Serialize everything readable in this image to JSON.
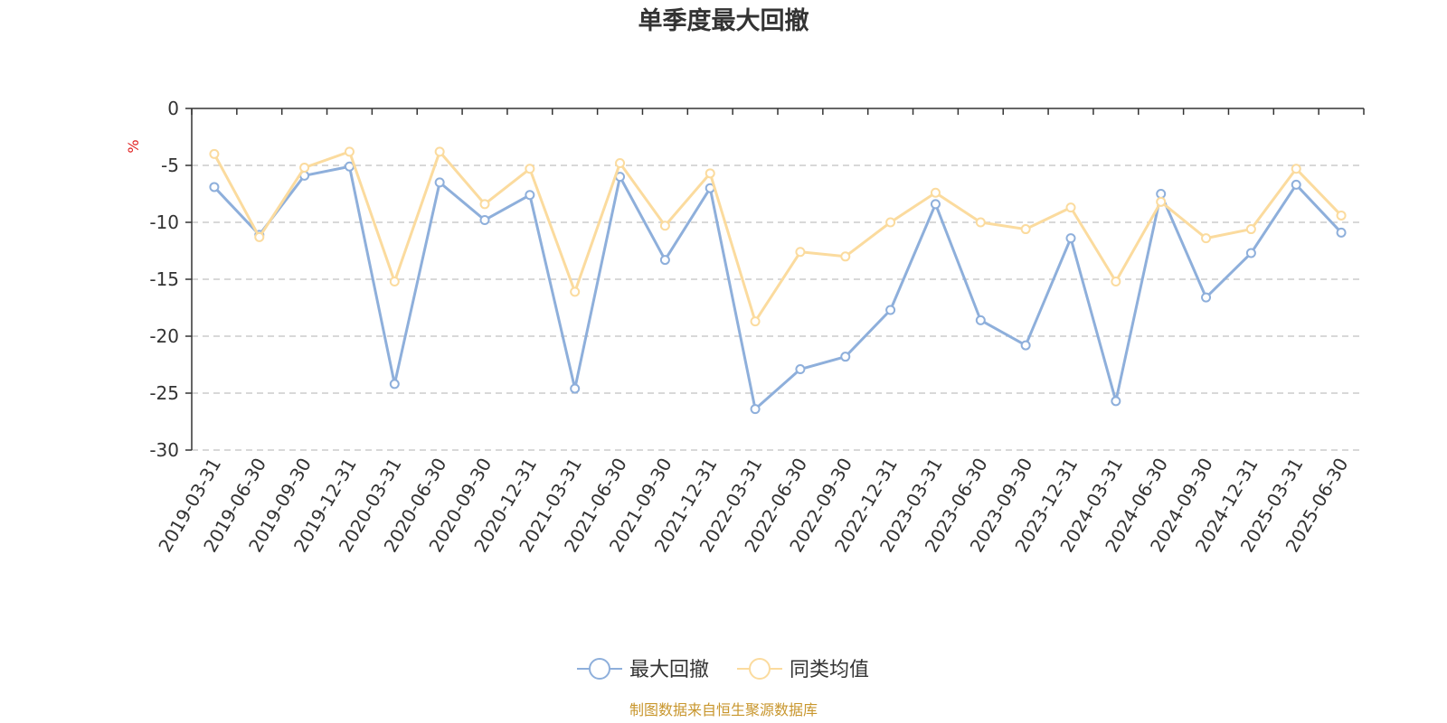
{
  "chart_data": {
    "type": "line",
    "title": "单季度最大回撤",
    "ylabel": "%",
    "xlabel": "",
    "ylim": [
      -30,
      0
    ],
    "yticks": [
      0,
      -5,
      -10,
      -15,
      -20,
      -25,
      -30
    ],
    "grid": true,
    "legend_position": "bottom",
    "categories": [
      "2019-03-31",
      "2019-06-30",
      "2019-09-30",
      "2019-12-31",
      "2020-03-31",
      "2020-06-30",
      "2020-09-30",
      "2020-12-31",
      "2021-03-31",
      "2021-06-30",
      "2021-09-30",
      "2021-12-31",
      "2022-03-31",
      "2022-06-30",
      "2022-09-30",
      "2022-12-31",
      "2023-03-31",
      "2023-06-30",
      "2023-09-30",
      "2023-12-31",
      "2024-03-31",
      "2024-06-30",
      "2024-09-30",
      "2024-12-31",
      "2025-03-31",
      "2025-06-30"
    ],
    "series": [
      {
        "name": "最大回撤",
        "color": "#8eafdb",
        "values": [
          -6.9,
          -11.1,
          -5.9,
          -5.1,
          -24.2,
          -6.5,
          -9.8,
          -7.6,
          -24.6,
          -6.0,
          -13.3,
          -7.0,
          -26.4,
          -22.9,
          -21.8,
          -17.7,
          -8.4,
          -18.6,
          -20.8,
          -11.4,
          -25.7,
          -7.5,
          -16.6,
          -12.7,
          -6.7,
          -10.9
        ]
      },
      {
        "name": "同类均值",
        "color": "#fbdb9e",
        "values": [
          -4.0,
          -11.3,
          -5.2,
          -3.8,
          -15.2,
          -3.8,
          -8.4,
          -5.3,
          -16.1,
          -4.8,
          -10.3,
          -5.7,
          -18.7,
          -12.6,
          -13.0,
          -10.0,
          -7.4,
          -10.0,
          -10.6,
          -8.7,
          -15.2,
          -8.2,
          -11.4,
          -10.6,
          -5.3,
          -9.4
        ]
      }
    ],
    "source": "制图数据来自恒生聚源数据库"
  }
}
